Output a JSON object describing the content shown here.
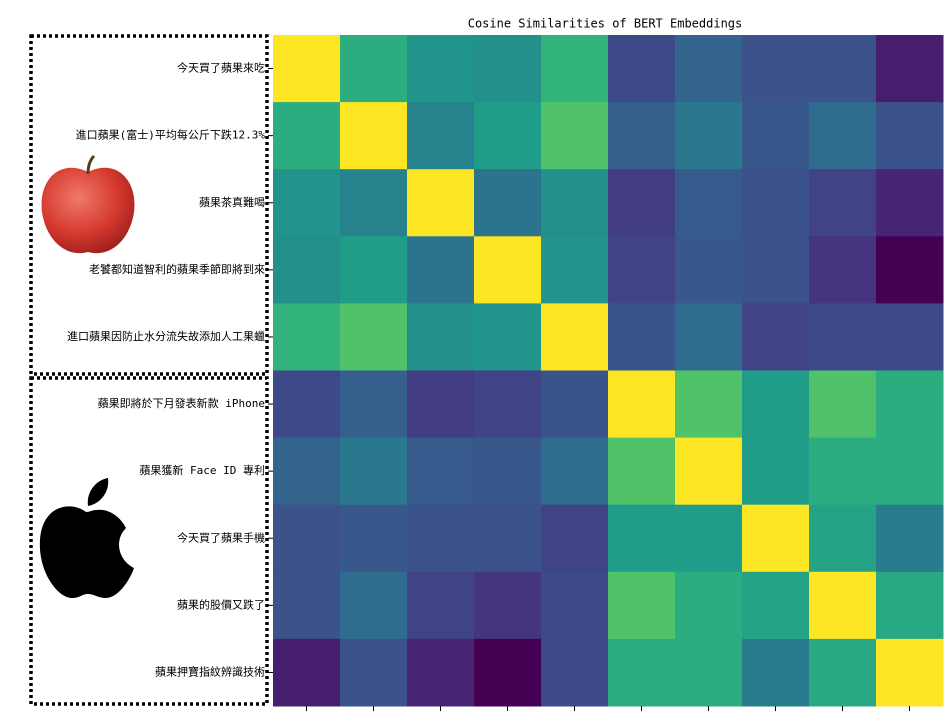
{
  "chart_data": {
    "type": "heatmap",
    "title": "Cosine Similarities of BERT Embeddings",
    "categories": [
      "今天買了蘋果來吃",
      "進口蘋果(富士)平均每公斤下跌12.3%",
      "蘋果茶真難喝",
      "老饕都知道智利的蘋果季節即將到來",
      "進口蘋果因防止水分流失故添加人工果蠟",
      "蘋果即將於下月發表新款 iPhone",
      "蘋果獲新 Face ID 專利",
      "今天買了蘋果手機",
      "蘋果的股價又跌了",
      "蘋果押寶指紋辨識技術"
    ],
    "colormap": "viridis",
    "vlim": [
      0,
      1
    ],
    "values": [
      [
        1,
        0.62,
        0.52,
        0.5,
        0.65,
        0.22,
        0.32,
        0.25,
        0.25,
        0.08
      ],
      [
        0.62,
        1,
        0.45,
        0.55,
        0.72,
        0.3,
        0.4,
        0.27,
        0.35,
        0.25
      ],
      [
        0.52,
        0.45,
        1,
        0.38,
        0.5,
        0.18,
        0.28,
        0.25,
        0.2,
        0.1
      ],
      [
        0.5,
        0.55,
        0.38,
        1,
        0.52,
        0.2,
        0.27,
        0.25,
        0.15,
        0
      ],
      [
        0.65,
        0.72,
        0.5,
        0.52,
        1,
        0.26,
        0.35,
        0.2,
        0.22,
        0.22
      ],
      [
        0.22,
        0.3,
        0.18,
        0.2,
        0.26,
        1,
        0.72,
        0.55,
        0.72,
        0.62
      ],
      [
        0.32,
        0.4,
        0.28,
        0.27,
        0.35,
        0.72,
        1,
        0.55,
        0.62,
        0.62
      ],
      [
        0.25,
        0.27,
        0.25,
        0.25,
        0.2,
        0.55,
        0.55,
        1,
        0.58,
        0.42
      ],
      [
        0.25,
        0.35,
        0.2,
        0.15,
        0.22,
        0.72,
        0.62,
        0.58,
        1,
        0.6
      ],
      [
        0.08,
        0.25,
        0.1,
        0,
        0.22,
        0.62,
        0.62,
        0.42,
        0.6,
        1
      ]
    ]
  }
}
